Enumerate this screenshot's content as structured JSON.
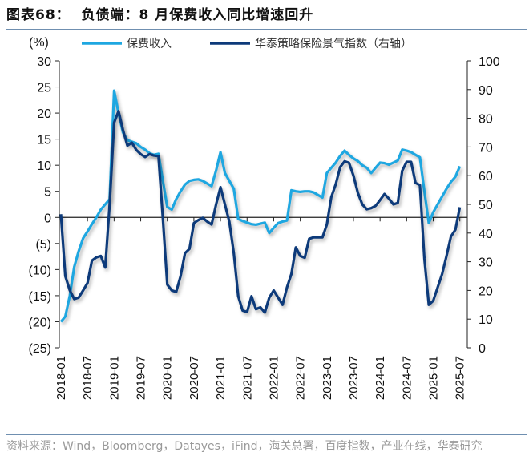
{
  "title": "图表68：  负债端：8 月保费收入同比增速回升",
  "source": "资料来源：Wind，Bloomberg，Datayes，iFind，海关总署，百度指数，产业在线，华泰研究",
  "chart_data": {
    "type": "line",
    "x_start": "2018-01",
    "x_end": "2025-07",
    "x_tick_labels": [
      "2018-01",
      "2018-07",
      "2019-01",
      "2019-07",
      "2020-01",
      "2020-07",
      "2021-01",
      "2021-07",
      "2022-01",
      "2022-07",
      "2023-01",
      "2023-07",
      "2024-01",
      "2024-07",
      "2025-01",
      "2025-07"
    ],
    "left_axis": {
      "label": "(%)",
      "ylim": [
        -25,
        30
      ],
      "tick_labels": [
        "30",
        "25",
        "20",
        "15",
        "10",
        "5",
        "0",
        "(5)",
        "(10)",
        "(15)",
        "(20)",
        "(25)"
      ]
    },
    "right_axis": {
      "ylim": [
        0,
        100
      ],
      "tick_labels": [
        "100",
        "90",
        "80",
        "70",
        "60",
        "50",
        "40",
        "30",
        "20",
        "10",
        "0"
      ]
    },
    "legend_position": "top",
    "grid": false,
    "series": [
      {
        "name": "保费收入",
        "axis": "left",
        "color": "#1ea7e1",
        "values": [
          -20,
          -19,
          -15,
          -9.5,
          -6.5,
          -4,
          -2.7,
          -1.3,
          0,
          1.5,
          2.5,
          3.5,
          24.3,
          20,
          16.3,
          14.8,
          14.5,
          14.2,
          13.5,
          13,
          12.3,
          12,
          12.2,
          7,
          2,
          1.5,
          3.5,
          5,
          6.3,
          7,
          7.2,
          7.3,
          7,
          6.5,
          6,
          9,
          12.5,
          8.5,
          7,
          5.5,
          -0.3,
          -0.7,
          -1,
          -1.3,
          -1.4,
          -1.2,
          -1,
          -3,
          -2,
          -1.1,
          -0.8,
          -0.6,
          5.2,
          5,
          4.9,
          5,
          5,
          4.8,
          4.3,
          3.8,
          8.5,
          9.5,
          10.5,
          11.8,
          12.8,
          12,
          11.3,
          10.8,
          10,
          9.5,
          8.5,
          9.5,
          10.5,
          10.4,
          10.1,
          10.5,
          10.9,
          13,
          12.8,
          12.5,
          12,
          11.5,
          5,
          -1.1,
          1,
          2.5,
          4,
          5.5,
          6.8,
          7.8,
          9.8
        ]
      },
      {
        "name": "华泰策略保险景气指数（右轴）",
        "axis": "right",
        "color": "#0d3a7a",
        "values": [
          46.6,
          25,
          20,
          17,
          17.5,
          20,
          22.6,
          30.4,
          31.5,
          32,
          28,
          50,
          78.5,
          82.5,
          76,
          70.5,
          71.5,
          69,
          67.5,
          66.5,
          67.5,
          67,
          66.8,
          45,
          22,
          20,
          19.5,
          25,
          33,
          34.5,
          43.5,
          44.5,
          45.3,
          44,
          43,
          50,
          56,
          50,
          44,
          33,
          18,
          13,
          12.5,
          18,
          13.5,
          14.1,
          12.3,
          17.5,
          20,
          17.5,
          15,
          21,
          25.8,
          35,
          32,
          31.4,
          38,
          38.5,
          38.5,
          38.5,
          43,
          52.5,
          57,
          63,
          65,
          64.5,
          60,
          54,
          50,
          48.3,
          48.7,
          49.5,
          51.5,
          53.6,
          52,
          50,
          50.5,
          61.7,
          64.8,
          64.8,
          57.5,
          56.7,
          31,
          15,
          16.4,
          21,
          25.7,
          32,
          38.8,
          41.2,
          49
        ]
      }
    ]
  }
}
